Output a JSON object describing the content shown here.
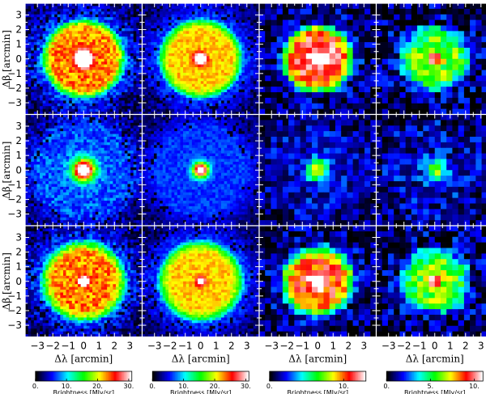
{
  "chart_data": {
    "type": "heatmap",
    "x_label": "Δλ [arcmin]",
    "y_label": "Δβ [arcmin]",
    "x_ticks": [
      "−3",
      "−2",
      "−1",
      "0",
      "1",
      "2",
      "3"
    ],
    "y_ticks": [
      "3",
      "2",
      "1",
      "0",
      "−1",
      "−2",
      "−3"
    ],
    "xlim": [
      -3.8,
      3.8
    ],
    "ylim": [
      -3.8,
      3.8
    ],
    "colormap": [
      "#000000",
      "#0000ff",
      "#00ffff",
      "#00ff00",
      "#ffff00",
      "#ff0000",
      "#ffffff"
    ],
    "grid": {
      "rows": 3,
      "cols": 4
    },
    "colorbars": [
      {
        "label": "Brightness [MJy/sr]",
        "ticks": [
          "0.",
          "10.",
          "20.",
          "30."
        ],
        "tick_values": [
          0,
          10,
          20,
          30
        ],
        "range": [
          0,
          31
        ]
      },
      {
        "label": "Brightness [MJy/sr]",
        "ticks": [
          "0.",
          "10.",
          "20.",
          "30."
        ],
        "tick_values": [
          0,
          10,
          20,
          30
        ],
        "range": [
          0,
          31
        ]
      },
      {
        "label": "Brightness [MJy/sr]",
        "ticks": [
          "0.",
          "10."
        ],
        "tick_values": [
          0,
          10
        ],
        "range": [
          0,
          13
        ]
      },
      {
        "label": "Brightness [MJy/sr]",
        "ticks": [
          "0.",
          "5.",
          "10."
        ],
        "tick_values": [
          0,
          5,
          10
        ],
        "range": [
          0,
          11
        ]
      }
    ],
    "panels": [
      {
        "row": 0,
        "col": 0,
        "pixels": 40,
        "model": "ring",
        "ring_radius": 1.9,
        "ring_width": 1.1,
        "ring_level": 0.55,
        "center_level": 1.0,
        "core_radius": 0.35,
        "background": 0.2,
        "noise": 0.08
      },
      {
        "row": 0,
        "col": 1,
        "pixels": 40,
        "model": "ring",
        "ring_radius": 1.9,
        "ring_width": 1.1,
        "ring_level": 0.5,
        "center_level": 1.0,
        "core_radius": 0.25,
        "background": 0.2,
        "noise": 0.05
      },
      {
        "row": 0,
        "col": 2,
        "pixels": 20,
        "model": "ring",
        "ring_radius": 1.2,
        "ring_width": 1.6,
        "ring_level": 0.75,
        "center_level": 0.95,
        "core_radius": 0.3,
        "background": 0.12,
        "noise": 0.12
      },
      {
        "row": 0,
        "col": 3,
        "pixels": 20,
        "model": "ring",
        "ring_radius": 1.0,
        "ring_width": 1.8,
        "ring_level": 0.45,
        "center_level": 0.6,
        "core_radius": 0.25,
        "background": 0.1,
        "noise": 0.14
      },
      {
        "row": 1,
        "col": 0,
        "pixels": 40,
        "model": "point",
        "center_level": 1.0,
        "core_radius": 0.5,
        "background": 0.22,
        "noise": 0.07
      },
      {
        "row": 1,
        "col": 1,
        "pixels": 40,
        "model": "point",
        "center_level": 1.0,
        "core_radius": 0.35,
        "background": 0.2,
        "noise": 0.04
      },
      {
        "row": 1,
        "col": 2,
        "pixels": 20,
        "model": "point",
        "center_level": 0.5,
        "core_radius": 0.5,
        "background": 0.14,
        "noise": 0.1
      },
      {
        "row": 1,
        "col": 3,
        "pixels": 20,
        "model": "point",
        "center_level": 0.45,
        "core_radius": 0.5,
        "background": 0.13,
        "noise": 0.12
      },
      {
        "row": 2,
        "col": 0,
        "pixels": 40,
        "model": "ring",
        "ring_radius": 1.8,
        "ring_width": 1.3,
        "ring_level": 0.55,
        "center_level": 0.85,
        "core_radius": 0.2,
        "background": 0.2,
        "noise": 0.08
      },
      {
        "row": 2,
        "col": 1,
        "pixels": 40,
        "model": "ring",
        "ring_radius": 1.8,
        "ring_width": 1.3,
        "ring_level": 0.5,
        "center_level": 0.55,
        "core_radius": 0.2,
        "background": 0.2,
        "noise": 0.05
      },
      {
        "row": 2,
        "col": 2,
        "pixels": 20,
        "model": "ring",
        "ring_radius": 1.2,
        "ring_width": 1.7,
        "ring_level": 0.7,
        "center_level": 0.75,
        "core_radius": 0.3,
        "background": 0.12,
        "noise": 0.12
      },
      {
        "row": 2,
        "col": 3,
        "pixels": 20,
        "model": "ring",
        "ring_radius": 1.0,
        "ring_width": 1.8,
        "ring_level": 0.45,
        "center_level": 0.5,
        "core_radius": 0.3,
        "background": 0.1,
        "noise": 0.14
      }
    ]
  }
}
